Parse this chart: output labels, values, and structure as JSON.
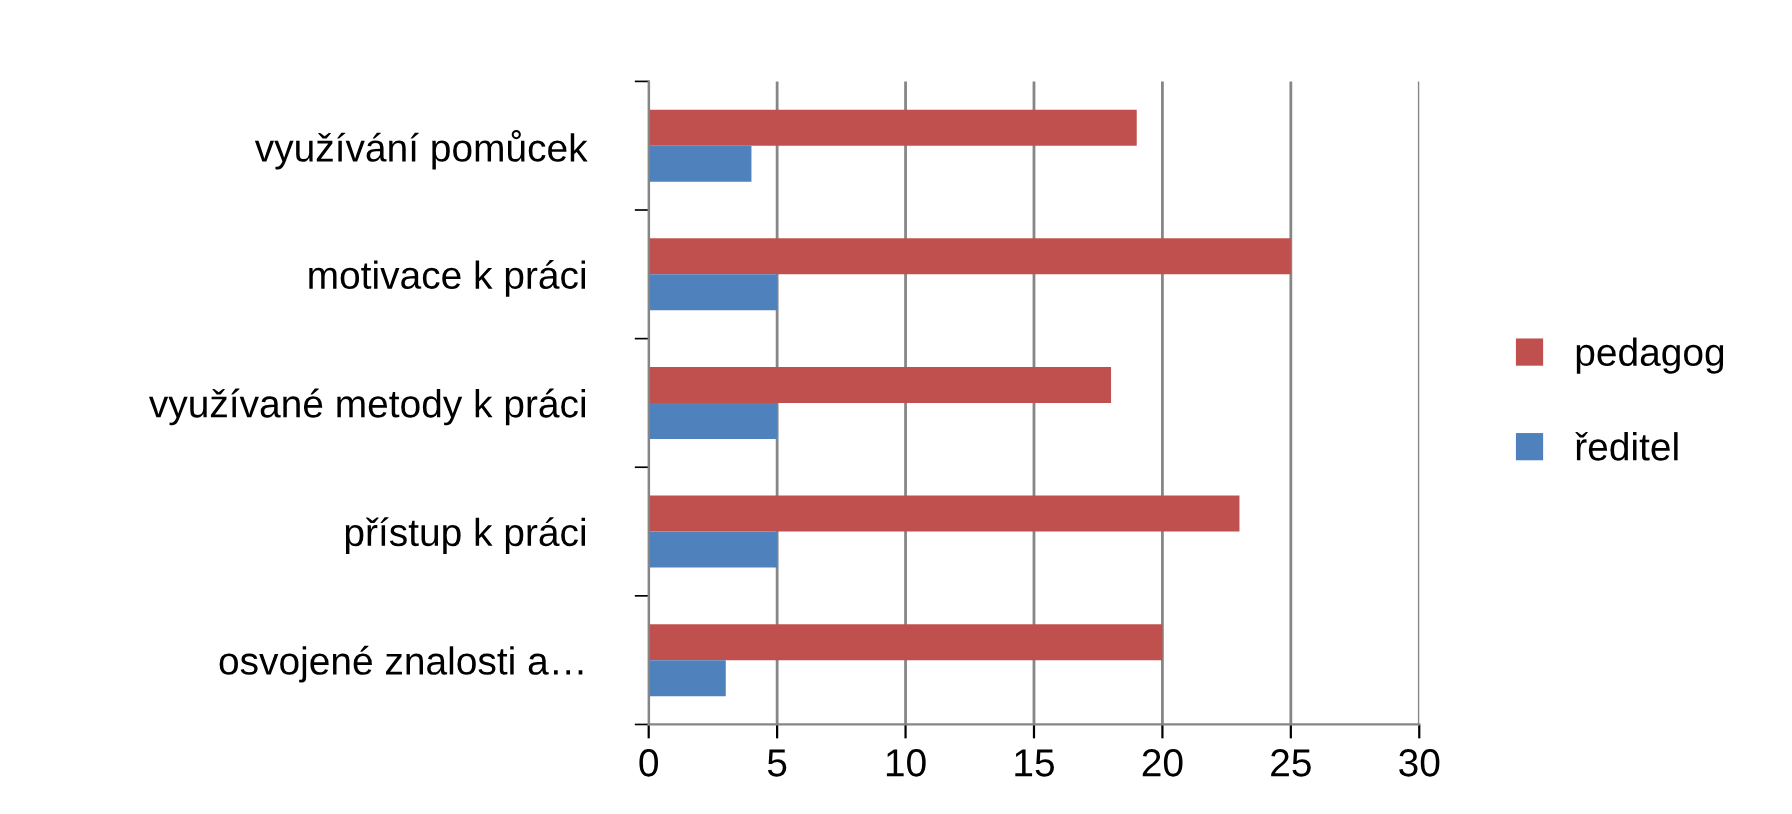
{
  "chart_data": {
    "type": "bar",
    "orientation": "horizontal",
    "categories": [
      "využívání pomůcek",
      "motivace k práci",
      "využívané metody k práci",
      "přístup k práci",
      "osvojené znalosti a…"
    ],
    "series": [
      {
        "name": "pedagog",
        "color": "#c0504d",
        "values": [
          19,
          25,
          18,
          23,
          20
        ]
      },
      {
        "name": "ředitel",
        "color": "#4f81bd",
        "values": [
          4,
          5,
          5,
          5,
          3
        ]
      }
    ],
    "xlim": [
      0,
      30
    ],
    "xticks": [
      0,
      5,
      10,
      15,
      20,
      25,
      30
    ],
    "grid": "x",
    "legend": "right"
  }
}
